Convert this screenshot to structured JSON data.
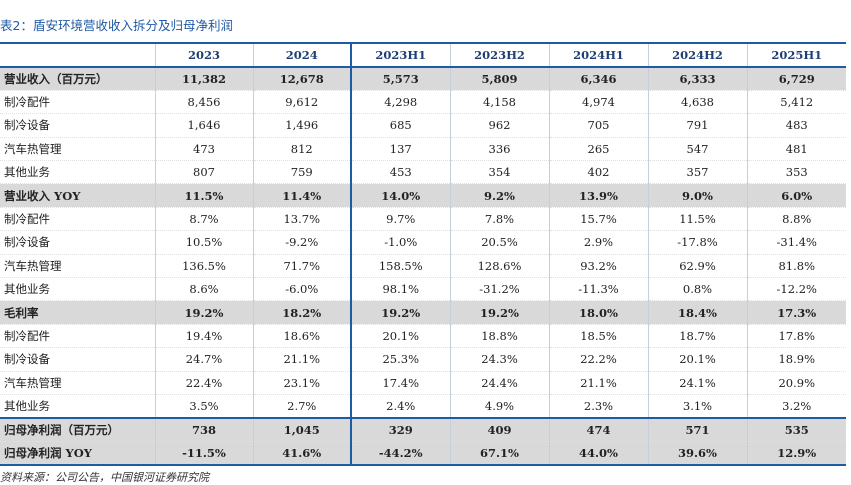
{
  "caption": "表2：盾安环境营收收入拆分及归母净利润",
  "columns": [
    "",
    "2023",
    "2024",
    "2023H1",
    "2023H2",
    "2024H1",
    "2024H2",
    "2025H1"
  ],
  "rows": [
    {
      "label": "营业收入（百万元）",
      "section": true,
      "values": [
        "11,382",
        "12,678",
        "5,573",
        "5,809",
        "6,346",
        "6,333",
        "6,729"
      ]
    },
    {
      "label": "制冷配件",
      "values": [
        "8,456",
        "9,612",
        "4,298",
        "4,158",
        "4,974",
        "4,638",
        "5,412"
      ]
    },
    {
      "label": "制冷设备",
      "values": [
        "1,646",
        "1,496",
        "685",
        "962",
        "705",
        "791",
        "483"
      ]
    },
    {
      "label": "汽车热管理",
      "values": [
        "473",
        "812",
        "137",
        "336",
        "265",
        "547",
        "481"
      ]
    },
    {
      "label": "其他业务",
      "values": [
        "807",
        "759",
        "453",
        "354",
        "402",
        "357",
        "353"
      ]
    },
    {
      "label": "营业收入 YOY",
      "section": true,
      "values": [
        "11.5%",
        "11.4%",
        "14.0%",
        "9.2%",
        "13.9%",
        "9.0%",
        "6.0%"
      ]
    },
    {
      "label": "制冷配件",
      "values": [
        "8.7%",
        "13.7%",
        "9.7%",
        "7.8%",
        "15.7%",
        "11.5%",
        "8.8%"
      ]
    },
    {
      "label": "制冷设备",
      "values": [
        "10.5%",
        "-9.2%",
        "-1.0%",
        "20.5%",
        "2.9%",
        "-17.8%",
        "-31.4%"
      ]
    },
    {
      "label": "汽车热管理",
      "values": [
        "136.5%",
        "71.7%",
        "158.5%",
        "128.6%",
        "93.2%",
        "62.9%",
        "81.8%"
      ]
    },
    {
      "label": "其他业务",
      "values": [
        "8.6%",
        "-6.0%",
        "98.1%",
        "-31.2%",
        "-11.3%",
        "0.8%",
        "-12.2%"
      ]
    },
    {
      "label": "毛利率",
      "section": true,
      "values": [
        "19.2%",
        "18.2%",
        "19.2%",
        "19.2%",
        "18.0%",
        "18.4%",
        "17.3%"
      ]
    },
    {
      "label": "制冷配件",
      "values": [
        "19.4%",
        "18.6%",
        "20.1%",
        "18.8%",
        "18.5%",
        "18.7%",
        "17.8%"
      ]
    },
    {
      "label": "制冷设备",
      "values": [
        "24.7%",
        "21.1%",
        "25.3%",
        "24.3%",
        "22.2%",
        "20.1%",
        "18.9%"
      ]
    },
    {
      "label": "汽车热管理",
      "values": [
        "22.4%",
        "23.1%",
        "17.4%",
        "24.4%",
        "21.1%",
        "24.1%",
        "20.9%"
      ]
    },
    {
      "label": "其他业务",
      "values": [
        "3.5%",
        "2.7%",
        "2.4%",
        "4.9%",
        "2.3%",
        "3.1%",
        "3.2%"
      ]
    },
    {
      "label": "归母净利润（百万元）",
      "section": true,
      "values": [
        "738",
        "1,045",
        "329",
        "409",
        "474",
        "571",
        "535"
      ]
    },
    {
      "label": "归母净利润 YOY",
      "section": true,
      "values": [
        "-11.5%",
        "41.6%",
        "-44.2%",
        "67.1%",
        "44.0%",
        "39.6%",
        "12.9%"
      ]
    }
  ],
  "source": "资料来源：公司公告，中国银河证券研究院"
}
